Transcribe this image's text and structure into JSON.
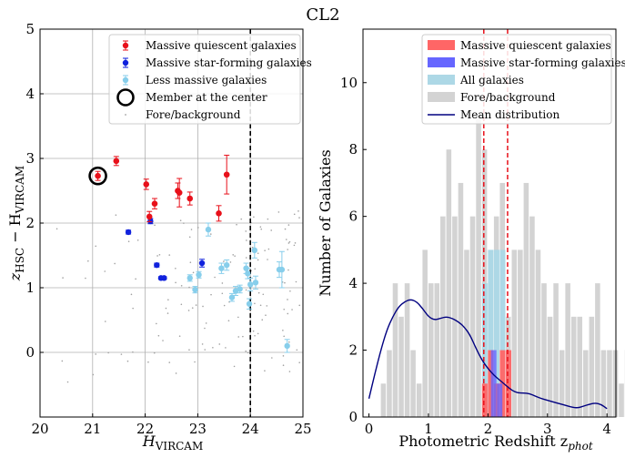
{
  "figure_title": "CL2",
  "chart_data": [
    {
      "type": "scatter",
      "xlabel": "H",
      "xlabel_sub": "VIRCAM",
      "ylabel_main": "z",
      "ylabel_sub1": "HSC",
      "ylabel_mid": " − H",
      "ylabel_sub2": "VIRCAM",
      "xlim": [
        20,
        25
      ],
      "ylim": [
        -1,
        5
      ],
      "xticks": [
        "20",
        "21",
        "22",
        "23",
        "24",
        "25"
      ],
      "yticks": [
        "0",
        "1",
        "2",
        "3",
        "4",
        "5"
      ],
      "grid": true,
      "legend_position": "top-right",
      "vline_x": 24,
      "colors": {
        "quiescent": "#e8101a",
        "starforming": "#1122dd",
        "lessmassive": "#87ceeb",
        "background": "#a0a0a0",
        "member": "#000000"
      },
      "legend": [
        {
          "label": "Massive quiescent galaxies",
          "kind": "quiescent"
        },
        {
          "label": "Massive star-forming galaxies",
          "kind": "starforming"
        },
        {
          "label": "Less massive galaxies",
          "kind": "lessmassive"
        },
        {
          "label": "Member at the center",
          "kind": "member"
        },
        {
          "label": "Fore/background",
          "kind": "background"
        }
      ],
      "quiescent": [
        {
          "x": 21.1,
          "y": 2.73,
          "err": 0.07
        },
        {
          "x": 21.45,
          "y": 2.96,
          "err": 0.07
        },
        {
          "x": 22.02,
          "y": 2.6,
          "err": 0.08
        },
        {
          "x": 22.08,
          "y": 2.1,
          "err": 0.08
        },
        {
          "x": 22.18,
          "y": 2.3,
          "err": 0.08
        },
        {
          "x": 22.62,
          "y": 2.5,
          "err": 0.12
        },
        {
          "x": 22.65,
          "y": 2.47,
          "err": 0.22
        },
        {
          "x": 22.85,
          "y": 2.38,
          "err": 0.1
        },
        {
          "x": 23.4,
          "y": 2.15,
          "err": 0.12
        },
        {
          "x": 23.55,
          "y": 2.75,
          "err": 0.3
        }
      ],
      "starforming": [
        {
          "x": 21.68,
          "y": 1.86,
          "err": 0.03
        },
        {
          "x": 22.1,
          "y": 2.03,
          "err": 0.04
        },
        {
          "x": 22.22,
          "y": 1.35,
          "err": 0.03
        },
        {
          "x": 22.3,
          "y": 1.15,
          "err": 0.02
        },
        {
          "x": 22.36,
          "y": 1.15,
          "err": 0.02
        },
        {
          "x": 23.08,
          "y": 1.38,
          "err": 0.06
        }
      ],
      "lessmassive": [
        {
          "x": 22.85,
          "y": 1.15,
          "err": 0.05
        },
        {
          "x": 22.95,
          "y": 0.97,
          "err": 0.05
        },
        {
          "x": 23.02,
          "y": 1.2,
          "err": 0.05
        },
        {
          "x": 23.2,
          "y": 1.9,
          "err": 0.1
        },
        {
          "x": 23.45,
          "y": 1.3,
          "err": 0.08
        },
        {
          "x": 23.55,
          "y": 1.35,
          "err": 0.08
        },
        {
          "x": 23.65,
          "y": 0.85,
          "err": 0.06
        },
        {
          "x": 23.72,
          "y": 0.95,
          "err": 0.07
        },
        {
          "x": 23.8,
          "y": 0.98,
          "err": 0.06
        },
        {
          "x": 23.92,
          "y": 1.3,
          "err": 0.08
        },
        {
          "x": 23.95,
          "y": 1.22,
          "err": 0.08
        },
        {
          "x": 23.98,
          "y": 0.75,
          "err": 0.08
        },
        {
          "x": 24.0,
          "y": 1.05,
          "err": 0.1
        },
        {
          "x": 24.08,
          "y": 1.58,
          "err": 0.12
        },
        {
          "x": 24.1,
          "y": 1.08,
          "err": 0.1
        },
        {
          "x": 24.55,
          "y": 1.28,
          "err": 0.12
        },
        {
          "x": 24.6,
          "y": 1.28,
          "err": 0.28
        },
        {
          "x": 24.7,
          "y": 0.1,
          "err": 0.1
        }
      ],
      "member": {
        "x": 21.1,
        "y": 2.73
      }
    },
    {
      "type": "bar",
      "xlabel": "Photometric Redshift z",
      "xlabel_sub": "phot",
      "ylabel": "Number of Galaxies",
      "xlim": [
        -0.1,
        4.15
      ],
      "ylim": [
        0,
        11.6
      ],
      "xticks": [
        "0",
        "1",
        "2",
        "3",
        "4"
      ],
      "yticks": [
        "0",
        "2",
        "4",
        "6",
        "8",
        "10"
      ],
      "grid": false,
      "legend_position": "top-right",
      "bin_width": 0.1,
      "bins_start": 0.0,
      "vlines": [
        1.93,
        2.33
      ],
      "colors": {
        "quiescent": "#ff6666",
        "starforming": "#6666ff",
        "all": "#add8e6",
        "background": "#d3d3d3",
        "mean": "#000080",
        "vline": "#e8101a"
      },
      "legend": [
        {
          "label": "Massive quiescent galaxies",
          "kind": "quiescent"
        },
        {
          "label": "Massive star-forming galaxies",
          "kind": "starforming"
        },
        {
          "label": "All galaxies",
          "kind": "all"
        },
        {
          "label": "Fore/background",
          "kind": "background"
        },
        {
          "label": "Mean distribution",
          "kind": "mean"
        }
      ],
      "background_counts": [
        0,
        0,
        1,
        2,
        4,
        3,
        4,
        2,
        1,
        5,
        4,
        4,
        6,
        8,
        6,
        7,
        5,
        6,
        9,
        8,
        4,
        6,
        7,
        3,
        5,
        5,
        7,
        6,
        5,
        4,
        3,
        4,
        2,
        4,
        3,
        3,
        2,
        3,
        4,
        2,
        2,
        2,
        1,
        2,
        3,
        1,
        2,
        3,
        1,
        0,
        1,
        2,
        1,
        0,
        2,
        1,
        2,
        0,
        1,
        1,
        0,
        2,
        3,
        1,
        0,
        1,
        1,
        0,
        1,
        0,
        0,
        0,
        1,
        0,
        0,
        0,
        0,
        0,
        1,
        0,
        0
      ],
      "all_counts": [
        {
          "x": 1.9,
          "v": 4
        },
        {
          "x": 2.0,
          "v": 5
        },
        {
          "x": 2.1,
          "v": 5
        },
        {
          "x": 2.2,
          "v": 5
        },
        {
          "x": 2.3,
          "v": 2
        }
      ],
      "quiescent_counts": [
        {
          "x": 1.9,
          "v": 1
        },
        {
          "x": 2.0,
          "v": 2
        },
        {
          "x": 2.1,
          "v": 1
        },
        {
          "x": 2.2,
          "v": 2
        },
        {
          "x": 2.3,
          "v": 2
        }
      ],
      "starforming_counts": [
        {
          "x": 2.05,
          "v": 2
        },
        {
          "x": 2.15,
          "v": 1
        }
      ],
      "mean_curve": {
        "x": [
          0.0,
          0.1,
          0.2,
          0.3,
          0.4,
          0.5,
          0.6,
          0.7,
          0.8,
          0.9,
          1.0,
          1.1,
          1.2,
          1.3,
          1.4,
          1.5,
          1.6,
          1.7,
          1.8,
          1.9,
          2.0,
          2.1,
          2.2,
          2.3,
          2.4,
          2.5,
          2.6,
          2.7,
          2.8,
          2.9,
          3.0,
          3.1,
          3.2,
          3.3,
          3.4,
          3.5,
          3.6,
          3.7,
          3.8,
          3.9,
          4.0
        ],
        "y": [
          0.55,
          1.3,
          2.0,
          2.6,
          3.0,
          3.3,
          3.45,
          3.52,
          3.45,
          3.25,
          3.0,
          2.9,
          2.95,
          3.0,
          2.95,
          2.85,
          2.7,
          2.45,
          2.05,
          1.7,
          1.45,
          1.25,
          1.1,
          0.95,
          0.8,
          0.72,
          0.72,
          0.7,
          0.62,
          0.55,
          0.5,
          0.45,
          0.4,
          0.35,
          0.3,
          0.27,
          0.32,
          0.38,
          0.42,
          0.38,
          0.25
        ]
      }
    }
  ]
}
